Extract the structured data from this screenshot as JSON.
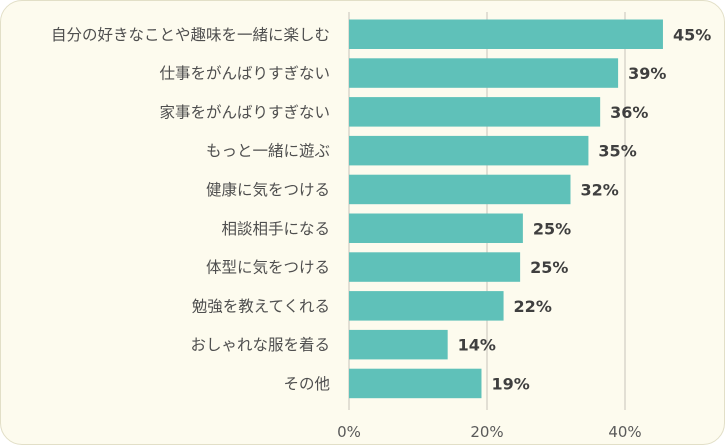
{
  "chart_data": {
    "type": "bar",
    "orientation": "horizontal",
    "categories": [
      "自分の好きなことや趣味を一緒に楽しむ",
      "仕事をがんばりすぎない",
      "家事をがんばりすぎない",
      "もっと一緒に遊ぶ",
      "健康に気をつける",
      "相談相手になる",
      "体型に気をつける",
      "勉強を教えてくれる",
      "おしゃれな服を着る",
      "その他"
    ],
    "values": [
      45,
      39,
      36,
      35,
      32,
      25,
      25,
      22,
      14,
      19
    ],
    "value_labels": [
      "45%",
      "39%",
      "36%",
      "35%",
      "32%",
      "25%",
      "25%",
      "22%",
      "14%",
      "19%"
    ],
    "bar_lengths": [
      45.5,
      39,
      36.4,
      34.7,
      32.1,
      25.2,
      24.8,
      22.4,
      14.3,
      19.2
    ],
    "xlim": [
      0,
      48
    ],
    "xticks": [
      0,
      20,
      40
    ],
    "xtick_labels": [
      "0%",
      "20%",
      "40%"
    ],
    "grid": true,
    "legend": "none",
    "colors": {
      "bar": "#5fc1b9",
      "background": "#fdfbee",
      "grid": "#d9d6cc"
    }
  }
}
